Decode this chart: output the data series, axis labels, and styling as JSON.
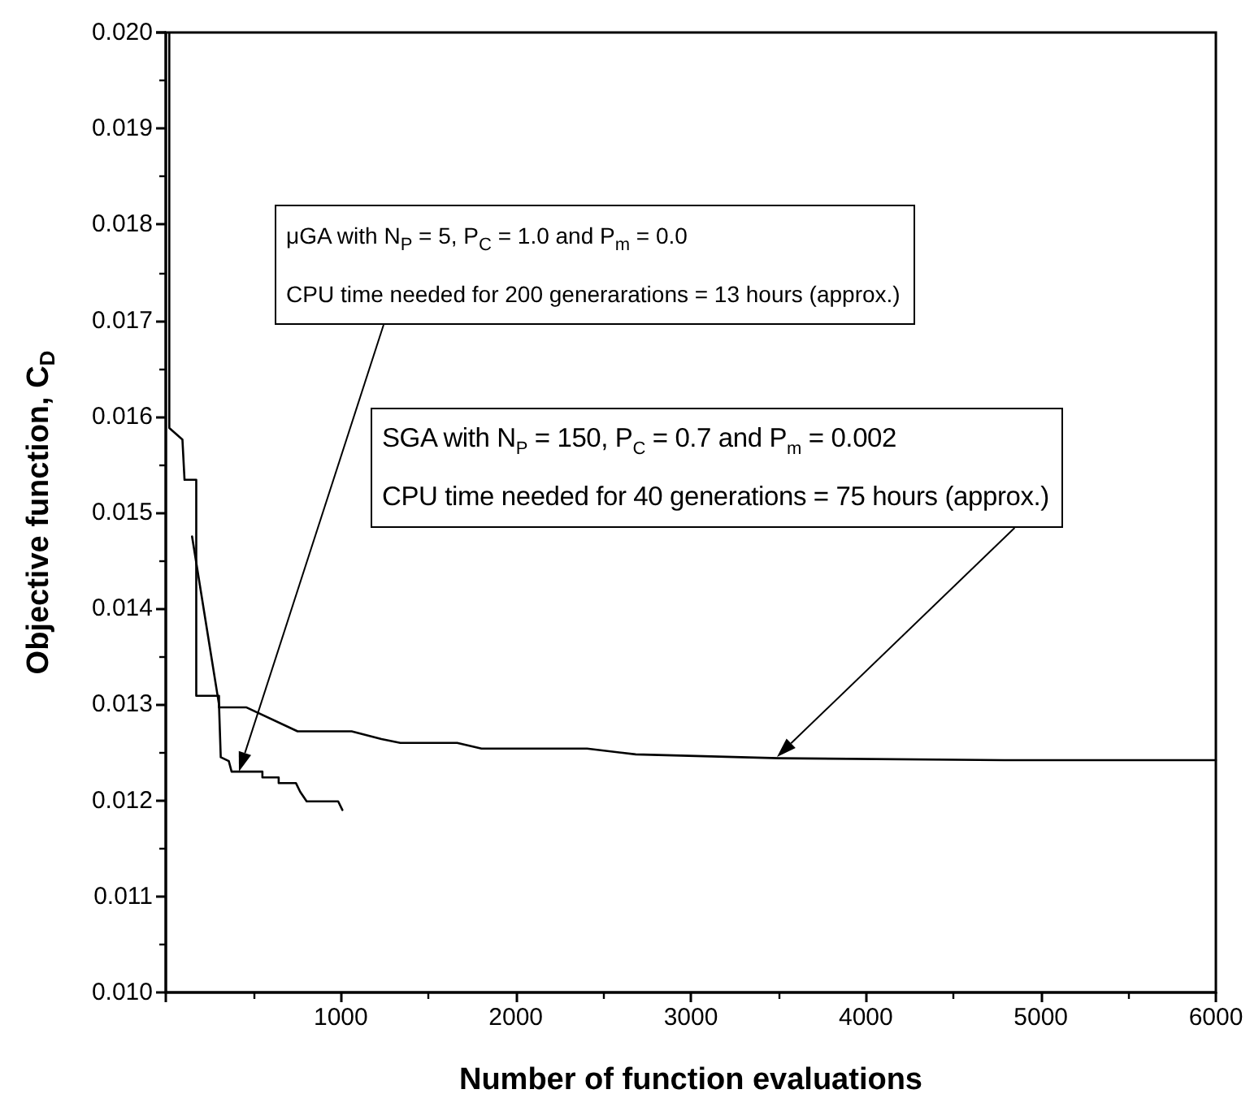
{
  "chart_data": {
    "type": "line",
    "xlabel": "Number of function evaluations",
    "ylabel": "Objective function, C$_{D}$",
    "xlim": [
      0,
      6000
    ],
    "ylim": [
      0.01,
      0.02
    ],
    "xticks": [
      {
        "value": 0,
        "label": null
      },
      1000,
      2000,
      3000,
      4000,
      5000,
      6000
    ],
    "yticks": [
      {
        "value": 0.01,
        "label": "0.010"
      },
      {
        "value": 0.011,
        "label": "0.011"
      },
      {
        "value": 0.012,
        "label": "0.012"
      },
      {
        "value": 0.013,
        "label": "0.013"
      },
      {
        "value": 0.014,
        "label": "0.014"
      },
      {
        "value": 0.015,
        "label": "0.015"
      },
      {
        "value": 0.016,
        "label": "0.016"
      },
      {
        "value": 0.017,
        "label": "0.017"
      },
      {
        "value": 0.018,
        "label": "0.018"
      },
      {
        "value": 0.019,
        "label": "0.019"
      },
      {
        "value": 0.02,
        "label": "0.020"
      }
    ],
    "grid": false,
    "marker": "none",
    "line_style": "solid",
    "series": [
      {
        "color": "#000000",
        "x": [
          20,
          20,
          95,
          95,
          107,
          107,
          174,
          174,
          304,
          304,
          459,
          753,
          1062,
          1232,
          1340,
          1665,
          1804,
          2407,
          2685,
          3505,
          4788,
          6000
        ],
        "values": [
          0.02,
          0.01588,
          0.01576,
          0.01576,
          0.01534,
          0.01534,
          0.01534,
          0.01309,
          0.01309,
          0.01297,
          0.01297,
          0.01272,
          0.01272,
          0.01264,
          0.0126,
          0.0126,
          0.01254,
          0.01254,
          0.01248,
          0.01244,
          0.01242,
          0.01242
        ]
      },
      {
        "color": "#000000",
        "x": [
          150,
          304,
          314,
          360,
          376,
          552,
          552,
          645,
          645,
          744,
          768,
          805,
          985,
          1009
        ],
        "values": [
          0.01475,
          0.013,
          0.01245,
          0.01241,
          0.0123,
          0.0123,
          0.01224,
          0.01224,
          0.01218,
          0.01218,
          0.01209,
          0.01199,
          0.01199,
          0.0119
        ]
      }
    ],
    "annotations": [
      "μGA with N$_{P}$ = 5, P$_{C}$ = 1.0 and P$_{m}$ = 0.0",
      "CPU time needed for 200 generarations = 13 hours (approx.)",
      "SGA with N$_{P}$ = 150, P$_{C}$ = 0.7 and P$_{m}$ = 0.002",
      "CPU time needed for 40 generations = 75 hours (approx.)"
    ]
  }
}
